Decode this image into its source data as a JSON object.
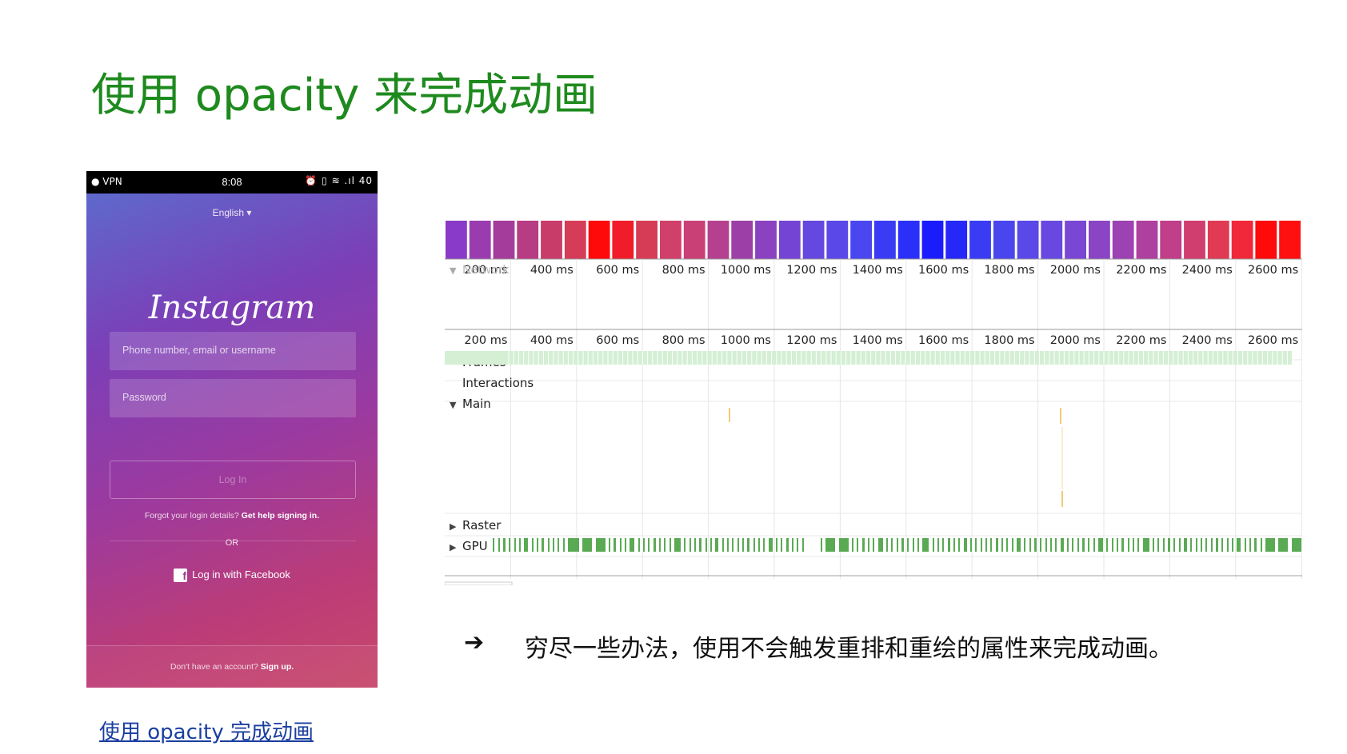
{
  "slide": {
    "title": "使用 opacity 来完成动画",
    "caption_link": "使用 opacity 完成动画",
    "bullet_arrow": "➔",
    "bullet_text": "穷尽一些办法，使用不会触发重排和重绘的属性来完成动画。"
  },
  "phone": {
    "status_time": "8:08",
    "status_left": "● VPN",
    "status_right": "⏰ ▯ ≋ .ıl 40",
    "language": "English ▾",
    "logo": "Instagram",
    "phone_placeholder": "Phone number, email or username",
    "password_placeholder": "Password",
    "login_label": "Log In",
    "forgot_text": "Forgot your login details?",
    "forgot_link": "Get help signing in.",
    "or_text": "OR",
    "facebook_icon": "f",
    "facebook_label": "Log in with Facebook",
    "signup_text": "Don't have an account?",
    "signup_link": "Sign up."
  },
  "devtools": {
    "fps_colors": [
      "#8a3ac8",
      "#9a3cb0",
      "#a43c9c",
      "#b83c84",
      "#c83c6a",
      "#d43c58",
      "#ff0a0a",
      "#f01c2a",
      "#d63c56",
      "#d0406a",
      "#c84076",
      "#b64090",
      "#9c40a8",
      "#8a42c0",
      "#7444d4",
      "#6448e0",
      "#5a48e8",
      "#4a46f0",
      "#3a3cf4",
      "#2a30f8",
      "#1a1cfc",
      "#2628f8",
      "#3a3cf4",
      "#4a46ee",
      "#5a48e8",
      "#6848e0",
      "#7a46d4",
      "#8a44c4",
      "#9c42b2",
      "#ae40a0",
      "#c03e8a",
      "#d03e70",
      "#e03a54",
      "#f0283a",
      "#ff0a0a",
      "#ff1010"
    ],
    "ticks": [
      "200 ms",
      "400 ms",
      "600 ms",
      "800 ms",
      "1000 ms",
      "1200 ms",
      "1400 ms",
      "1600 ms",
      "1800 ms",
      "2000 ms",
      "2200 ms",
      "2400 ms",
      "2600 ms"
    ],
    "network_label": "Network",
    "tracks": {
      "frames": "Frames",
      "interactions": "Interactions",
      "main": "Main",
      "raster": "Raster",
      "gpu": "GPU"
    },
    "colors": {
      "frames_fill": "#d4efd4",
      "gpu_bar": "#5aaa54",
      "grid": "#e6e6e6",
      "main_task": "#f0b84a"
    }
  }
}
